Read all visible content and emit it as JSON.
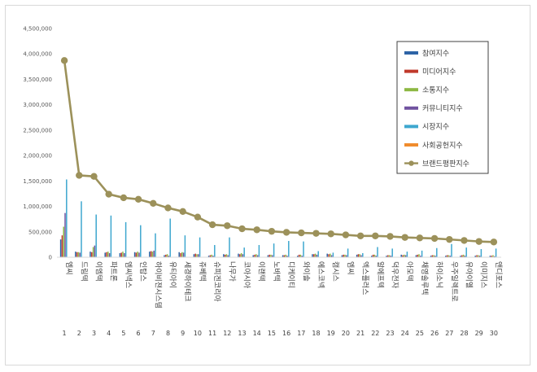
{
  "chart_data": {
    "type": "bar",
    "ylim": [
      0,
      4500000
    ],
    "yticks": [
      "0",
      "500,000",
      "1,000,000",
      "1,500,000",
      "2,000,000",
      "2,500,000",
      "3,000,000",
      "3,500,000",
      "4,000,000",
      "4,500,000"
    ],
    "ytick_values": [
      0,
      500000,
      1000000,
      1500000,
      2000000,
      2500000,
      3000000,
      3500000,
      4000000,
      4500000
    ],
    "grid": false,
    "legend_position": "top-right",
    "categories": [
      "엠씨",
      "드림텍",
      "이엠텍",
      "파트론",
      "엠씨넥스",
      "인탑스",
      "하이비젼시스템",
      "유티아이",
      "세경하이테크",
      "쥬베텍",
      "슈피겐코리아",
      "나무가",
      "코아시아",
      "이랜텍",
      "노바텍",
      "디케이티",
      "와이솔",
      "에스코넥",
      "캠시스",
      "엠씨",
      "엑스플러스",
      "알에프텍",
      "덕우전자",
      "아모텍",
      "채영솔루텍",
      "하이소닉",
      "우주일렉트로",
      "유아이엘",
      "이미지스",
      "앤디포스"
    ],
    "ranks": [
      "1",
      "2",
      "3",
      "4",
      "5",
      "6",
      "7",
      "8",
      "9",
      "10",
      "11",
      "12",
      "13",
      "14",
      "15",
      "16",
      "17",
      "18",
      "19",
      "20",
      "21",
      "22",
      "23",
      "24",
      "25",
      "26",
      "27",
      "28",
      "29",
      "30"
    ],
    "series": [
      {
        "name": "참여지수",
        "color": "#2e64a6",
        "values": [
          350000,
          110000,
          110000,
          90000,
          80000,
          100000,
          110000,
          40000,
          100000,
          60000,
          30000,
          60000,
          70000,
          40000,
          40000,
          40000,
          30000,
          60000,
          70000,
          40000,
          50000,
          30000,
          30000,
          50000,
          40000,
          30000,
          30000,
          30000,
          30000,
          30000
        ]
      },
      {
        "name": "미디어지수",
        "color": "#c0392b",
        "values": [
          430000,
          100000,
          100000,
          100000,
          90000,
          90000,
          120000,
          50000,
          80000,
          70000,
          40000,
          50000,
          60000,
          50000,
          50000,
          40000,
          50000,
          60000,
          60000,
          50000,
          60000,
          50000,
          40000,
          40000,
          50000,
          40000,
          40000,
          40000,
          40000,
          30000
        ]
      },
      {
        "name": "소통지수",
        "color": "#8db843",
        "values": [
          600000,
          100000,
          200000,
          110000,
          110000,
          110000,
          110000,
          60000,
          100000,
          60000,
          50000,
          60000,
          80000,
          60000,
          50000,
          50000,
          50000,
          70000,
          70000,
          50000,
          60000,
          50000,
          40000,
          50000,
          60000,
          40000,
          40000,
          50000,
          40000,
          40000
        ]
      },
      {
        "name": "커뮤니티지수",
        "color": "#7153a0",
        "values": [
          870000,
          90000,
          230000,
          80000,
          80000,
          90000,
          130000,
          30000,
          90000,
          60000,
          30000,
          40000,
          60000,
          40000,
          40000,
          30000,
          30000,
          50000,
          40000,
          40000,
          40000,
          30000,
          30000,
          40000,
          30000,
          30000,
          30000,
          30000,
          30000,
          20000
        ]
      },
      {
        "name": "시장지수",
        "color": "#3ea7cf",
        "values": [
          1530000,
          1100000,
          840000,
          820000,
          690000,
          630000,
          470000,
          760000,
          430000,
          390000,
          240000,
          390000,
          190000,
          240000,
          270000,
          320000,
          310000,
          120000,
          90000,
          170000,
          80000,
          200000,
          170000,
          110000,
          130000,
          180000,
          260000,
          190000,
          160000,
          170000
        ]
      },
      {
        "name": "사회공헌지수",
        "color": "#f08c2d",
        "values": [
          0,
          0,
          0,
          0,
          0,
          0,
          0,
          0,
          0,
          0,
          0,
          0,
          0,
          0,
          0,
          0,
          0,
          0,
          0,
          0,
          0,
          0,
          0,
          0,
          0,
          0,
          0,
          0,
          0,
          0
        ]
      },
      {
        "name": "브랜드평판지수",
        "color": "#9c915a",
        "line": true,
        "values": [
          3870000,
          1610000,
          1590000,
          1240000,
          1170000,
          1140000,
          1060000,
          970000,
          900000,
          790000,
          640000,
          620000,
          560000,
          540000,
          510000,
          490000,
          480000,
          470000,
          460000,
          440000,
          420000,
          420000,
          410000,
          390000,
          380000,
          370000,
          350000,
          330000,
          310000,
          300000
        ]
      }
    ]
  }
}
